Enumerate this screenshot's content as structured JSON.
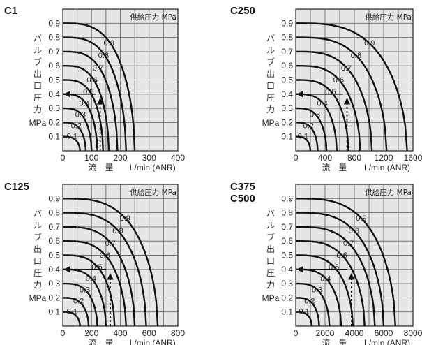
{
  "legend_text": "供給圧力 MPa",
  "ylabel_text": "バルブ出口圧力",
  "ylabel_unit": "MPa",
  "xlabel_left": "流　量",
  "xlabel_right": "L/min (ANR)",
  "grid_color": "#6b6b6b",
  "plot_bg": "#e6e6e6",
  "chart_data": [
    {
      "type": "line",
      "title": "C1",
      "ylim": [
        0,
        1.0
      ],
      "xlim": [
        0,
        400
      ],
      "xticks": [
        "0",
        "100",
        "200",
        "300",
        "400"
      ],
      "yticks": [
        "0.1",
        "0.2",
        "0.3",
        "0.4",
        "0.5",
        "0.6",
        "0.7",
        "0.8",
        "0.9"
      ],
      "series": [
        {
          "name": "0.1",
          "set_pressure": 0.1,
          "max_flow": 60
        },
        {
          "name": "0.2",
          "set_pressure": 0.2,
          "max_flow": 80
        },
        {
          "name": "0.3",
          "set_pressure": 0.3,
          "max_flow": 100
        },
        {
          "name": "0.4",
          "set_pressure": 0.4,
          "max_flow": 120
        },
        {
          "name": "0.5",
          "set_pressure": 0.5,
          "max_flow": 140
        },
        {
          "name": "0.6",
          "set_pressure": 0.6,
          "max_flow": 160
        },
        {
          "name": "0.7",
          "set_pressure": 0.7,
          "max_flow": 190
        },
        {
          "name": "0.8",
          "set_pressure": 0.8,
          "max_flow": 220
        },
        {
          "name": "0.9",
          "set_pressure": 0.9,
          "max_flow": 250
        }
      ],
      "example": {
        "x": 130,
        "y": 0.4
      }
    },
    {
      "type": "line",
      "title": "C250",
      "ylim": [
        0,
        1.0
      ],
      "xlim": [
        0,
        1600
      ],
      "xticks": [
        "0",
        "400",
        "800",
        "1200",
        "1600"
      ],
      "yticks": [
        "0.1",
        "0.2",
        "0.3",
        "0.4",
        "0.5",
        "0.6",
        "0.7",
        "0.8",
        "0.9"
      ],
      "series": [
        {
          "name": "0.1",
          "set_pressure": 0.1,
          "max_flow": 200
        },
        {
          "name": "0.2",
          "set_pressure": 0.2,
          "max_flow": 300
        },
        {
          "name": "0.3",
          "set_pressure": 0.3,
          "max_flow": 420
        },
        {
          "name": "0.4",
          "set_pressure": 0.4,
          "max_flow": 560
        },
        {
          "name": "0.5",
          "set_pressure": 0.5,
          "max_flow": 720
        },
        {
          "name": "0.6",
          "set_pressure": 0.6,
          "max_flow": 880
        },
        {
          "name": "0.7",
          "set_pressure": 0.7,
          "max_flow": 1040
        },
        {
          "name": "0.8",
          "set_pressure": 0.8,
          "max_flow": 1240
        },
        {
          "name": "0.9",
          "set_pressure": 0.9,
          "max_flow": 1520
        }
      ],
      "example": {
        "x": 700,
        "y": 0.4
      }
    },
    {
      "type": "line",
      "title": "C125",
      "ylim": [
        0,
        1.0
      ],
      "xlim": [
        0,
        800
      ],
      "xticks": [
        "0",
        "200",
        "400",
        "600",
        "800"
      ],
      "yticks": [
        "0.1",
        "0.2",
        "0.3",
        "0.4",
        "0.5",
        "0.6",
        "0.7",
        "0.8",
        "0.9"
      ],
      "series": [
        {
          "name": "0.1",
          "set_pressure": 0.1,
          "max_flow": 120
        },
        {
          "name": "0.2",
          "set_pressure": 0.2,
          "max_flow": 180
        },
        {
          "name": "0.3",
          "set_pressure": 0.3,
          "max_flow": 240
        },
        {
          "name": "0.4",
          "set_pressure": 0.4,
          "max_flow": 300
        },
        {
          "name": "0.5",
          "set_pressure": 0.5,
          "max_flow": 360
        },
        {
          "name": "0.6",
          "set_pressure": 0.6,
          "max_flow": 440
        },
        {
          "name": "0.7",
          "set_pressure": 0.7,
          "max_flow": 500
        },
        {
          "name": "0.8",
          "set_pressure": 0.8,
          "max_flow": 580
        },
        {
          "name": "0.9",
          "set_pressure": 0.9,
          "max_flow": 660
        }
      ],
      "example": {
        "x": 330,
        "y": 0.4
      }
    },
    {
      "type": "line",
      "title": "C375\nC500",
      "ylim": [
        0,
        1.0
      ],
      "xlim": [
        0,
        8000
      ],
      "xticks": [
        "0",
        "2000",
        "4000",
        "6000",
        "8000"
      ],
      "yticks": [
        "0.1",
        "0.2",
        "0.3",
        "0.4",
        "0.5",
        "0.6",
        "0.7",
        "0.8",
        "0.9"
      ],
      "series": [
        {
          "name": "0.1",
          "set_pressure": 0.1,
          "max_flow": 1100
        },
        {
          "name": "0.2",
          "set_pressure": 0.2,
          "max_flow": 1600
        },
        {
          "name": "0.3",
          "set_pressure": 0.3,
          "max_flow": 2300
        },
        {
          "name": "0.4",
          "set_pressure": 0.4,
          "max_flow": 3100
        },
        {
          "name": "0.5",
          "set_pressure": 0.5,
          "max_flow": 3900
        },
        {
          "name": "0.6",
          "set_pressure": 0.6,
          "max_flow": 4700
        },
        {
          "name": "0.7",
          "set_pressure": 0.7,
          "max_flow": 5400
        },
        {
          "name": "0.8",
          "set_pressure": 0.8,
          "max_flow": 6000
        },
        {
          "name": "0.9",
          "set_pressure": 0.9,
          "max_flow": 6800
        }
      ],
      "example": {
        "x": 3800,
        "y": 0.4
      }
    }
  ]
}
